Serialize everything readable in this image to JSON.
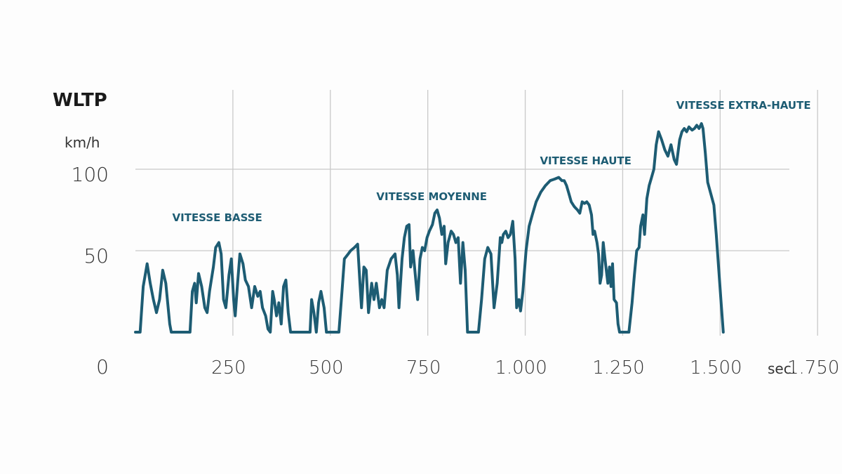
{
  "chart_data": {
    "type": "line",
    "title": "WLTP",
    "ylabel": "km/h",
    "xunit": "sec.",
    "origin_label": "0",
    "xlim": [
      0,
      1800
    ],
    "ylim": [
      0,
      135
    ],
    "xticks": [
      "250",
      "500",
      "750",
      "1.000",
      "1.250",
      "1.500",
      "1.750"
    ],
    "xtick_values": [
      250,
      500,
      750,
      1000,
      1250,
      1500,
      1750
    ],
    "yticks": [
      "50",
      "100"
    ],
    "ytick_values": [
      50,
      100
    ],
    "grid": true,
    "line_color": "#1d5c73",
    "phases": [
      {
        "label": "VITESSE BASSE",
        "x": 210,
        "y": 68
      },
      {
        "label": "VITESSE MOYENNE",
        "x": 760,
        "y": 81
      },
      {
        "label": "VITESSE HAUTE",
        "x": 1155,
        "y": 103
      },
      {
        "label": "VITESSE EXTRA-HAUTE",
        "x": 1560,
        "y": 137
      }
    ],
    "series": [
      {
        "values": [
          [
            0,
            0
          ],
          [
            12,
            0
          ],
          [
            20,
            28
          ],
          [
            30,
            42
          ],
          [
            38,
            30
          ],
          [
            46,
            20
          ],
          [
            54,
            12
          ],
          [
            62,
            20
          ],
          [
            70,
            38
          ],
          [
            78,
            30
          ],
          [
            88,
            5
          ],
          [
            92,
            0
          ],
          [
            140,
            0
          ],
          [
            146,
            25
          ],
          [
            152,
            30
          ],
          [
            156,
            18
          ],
          [
            162,
            36
          ],
          [
            170,
            28
          ],
          [
            178,
            15
          ],
          [
            184,
            12
          ],
          [
            190,
            25
          ],
          [
            200,
            40
          ],
          [
            206,
            52
          ],
          [
            214,
            55
          ],
          [
            220,
            48
          ],
          [
            226,
            20
          ],
          [
            232,
            15
          ],
          [
            240,
            35
          ],
          [
            246,
            45
          ],
          [
            252,
            20
          ],
          [
            256,
            10
          ],
          [
            262,
            30
          ],
          [
            268,
            48
          ],
          [
            276,
            42
          ],
          [
            282,
            32
          ],
          [
            290,
            28
          ],
          [
            298,
            15
          ],
          [
            306,
            28
          ],
          [
            314,
            22
          ],
          [
            320,
            25
          ],
          [
            326,
            15
          ],
          [
            334,
            10
          ],
          [
            340,
            2
          ],
          [
            346,
            0
          ],
          [
            352,
            25
          ],
          [
            356,
            20
          ],
          [
            362,
            10
          ],
          [
            368,
            18
          ],
          [
            374,
            5
          ],
          [
            380,
            28
          ],
          [
            386,
            32
          ],
          [
            392,
            12
          ],
          [
            398,
            0
          ],
          [
            448,
            0
          ],
          [
            452,
            20
          ],
          [
            458,
            12
          ],
          [
            464,
            0
          ],
          [
            470,
            18
          ],
          [
            476,
            25
          ],
          [
            484,
            15
          ],
          [
            490,
            0
          ],
          [
            522,
            0
          ],
          [
            530,
            25
          ],
          [
            536,
            45
          ],
          [
            546,
            48
          ],
          [
            552,
            50
          ],
          [
            562,
            52
          ],
          [
            570,
            54
          ],
          [
            576,
            30
          ],
          [
            580,
            15
          ],
          [
            586,
            40
          ],
          [
            592,
            38
          ],
          [
            598,
            12
          ],
          [
            606,
            30
          ],
          [
            612,
            20
          ],
          [
            618,
            30
          ],
          [
            626,
            15
          ],
          [
            632,
            20
          ],
          [
            638,
            15
          ],
          [
            646,
            38
          ],
          [
            656,
            45
          ],
          [
            666,
            48
          ],
          [
            672,
            35
          ],
          [
            676,
            15
          ],
          [
            684,
            45
          ],
          [
            690,
            58
          ],
          [
            696,
            65
          ],
          [
            702,
            66
          ],
          [
            706,
            40
          ],
          [
            712,
            50
          ],
          [
            718,
            35
          ],
          [
            724,
            20
          ],
          [
            730,
            45
          ],
          [
            736,
            52
          ],
          [
            742,
            50
          ],
          [
            748,
            58
          ],
          [
            754,
            62
          ],
          [
            762,
            66
          ],
          [
            768,
            73
          ],
          [
            774,
            75
          ],
          [
            780,
            70
          ],
          [
            786,
            60
          ],
          [
            792,
            65
          ],
          [
            796,
            42
          ],
          [
            802,
            55
          ],
          [
            810,
            62
          ],
          [
            816,
            60
          ],
          [
            822,
            55
          ],
          [
            828,
            58
          ],
          [
            834,
            30
          ],
          [
            840,
            55
          ],
          [
            846,
            38
          ],
          [
            852,
            0
          ],
          [
            880,
            0
          ],
          [
            888,
            20
          ],
          [
            896,
            45
          ],
          [
            904,
            52
          ],
          [
            912,
            48
          ],
          [
            920,
            15
          ],
          [
            928,
            30
          ],
          [
            936,
            58
          ],
          [
            940,
            55
          ],
          [
            944,
            60
          ],
          [
            950,
            62
          ],
          [
            956,
            58
          ],
          [
            962,
            60
          ],
          [
            968,
            68
          ],
          [
            974,
            45
          ],
          [
            978,
            15
          ],
          [
            984,
            20
          ],
          [
            988,
            13
          ],
          [
            994,
            25
          ],
          [
            1002,
            50
          ],
          [
            1010,
            65
          ],
          [
            1018,
            72
          ],
          [
            1028,
            80
          ],
          [
            1040,
            86
          ],
          [
            1052,
            90
          ],
          [
            1064,
            93
          ],
          [
            1076,
            94
          ],
          [
            1086,
            95
          ],
          [
            1094,
            93
          ],
          [
            1100,
            93
          ],
          [
            1106,
            90
          ],
          [
            1112,
            85
          ],
          [
            1118,
            80
          ],
          [
            1126,
            77
          ],
          [
            1134,
            75
          ],
          [
            1140,
            73
          ],
          [
            1146,
            80
          ],
          [
            1152,
            79
          ],
          [
            1158,
            80
          ],
          [
            1164,
            78
          ],
          [
            1170,
            72
          ],
          [
            1174,
            60
          ],
          [
            1178,
            62
          ],
          [
            1184,
            55
          ],
          [
            1188,
            48
          ],
          [
            1192,
            30
          ],
          [
            1196,
            35
          ],
          [
            1200,
            55
          ],
          [
            1206,
            42
          ],
          [
            1212,
            30
          ],
          [
            1216,
            40
          ],
          [
            1220,
            28
          ],
          [
            1224,
            42
          ],
          [
            1228,
            20
          ],
          [
            1234,
            18
          ],
          [
            1238,
            5
          ],
          [
            1242,
            0
          ],
          [
            1266,
            0
          ],
          [
            1274,
            18
          ],
          [
            1280,
            35
          ],
          [
            1286,
            50
          ],
          [
            1292,
            52
          ],
          [
            1296,
            65
          ],
          [
            1302,
            72
          ],
          [
            1306,
            60
          ],
          [
            1312,
            82
          ],
          [
            1318,
            90
          ],
          [
            1324,
            95
          ],
          [
            1330,
            100
          ],
          [
            1336,
            115
          ],
          [
            1342,
            123
          ],
          [
            1350,
            118
          ],
          [
            1358,
            112
          ],
          [
            1366,
            108
          ],
          [
            1374,
            115
          ],
          [
            1382,
            106
          ],
          [
            1388,
            103
          ],
          [
            1396,
            118
          ],
          [
            1402,
            123
          ],
          [
            1408,
            125
          ],
          [
            1414,
            123
          ],
          [
            1420,
            126
          ],
          [
            1428,
            124
          ],
          [
            1434,
            125
          ],
          [
            1440,
            127
          ],
          [
            1446,
            125
          ],
          [
            1452,
            128
          ],
          [
            1456,
            125
          ],
          [
            1462,
            110
          ],
          [
            1468,
            92
          ],
          [
            1476,
            85
          ],
          [
            1484,
            78
          ],
          [
            1490,
            60
          ],
          [
            1496,
            40
          ],
          [
            1502,
            20
          ],
          [
            1508,
            0
          ]
        ]
      }
    ]
  }
}
